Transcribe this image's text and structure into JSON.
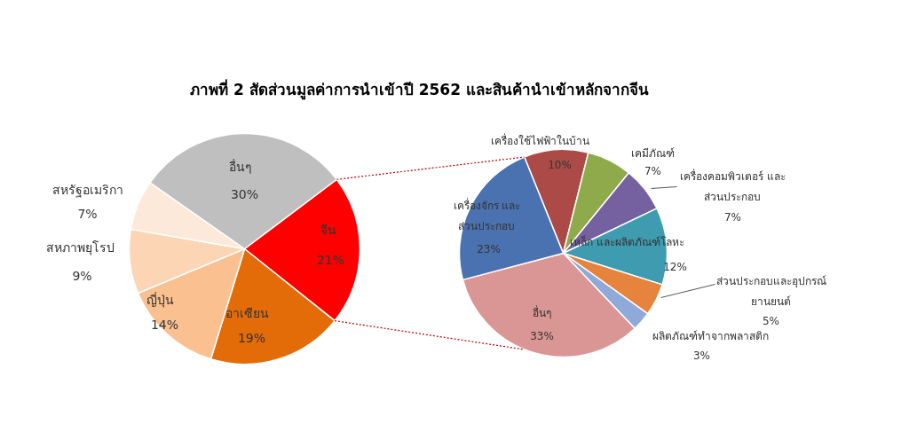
{
  "chart_data": [
    {
      "type": "pie",
      "title": "ภาพที่ 2 สัดส่วนมูลค่าการนำเข้าปี 2562 และสินค้านำเข้าหลักจากจีน",
      "categories": [
        "จีน",
        "อาเซียน",
        "ญี่ปุ่น",
        "สหภาพยุโรป",
        "สหรัฐอเมริกา",
        "อื่นๆ"
      ],
      "values": [
        21,
        19,
        14,
        9,
        7,
        30
      ],
      "value_labels": [
        "21%",
        "19%",
        "14%",
        "9%",
        "7%",
        "30%"
      ],
      "colors": [
        "#ff0000",
        "#e36c09",
        "#fac090",
        "#fcd5b5",
        "#fde9d9",
        "#bfbfbf"
      ]
    },
    {
      "type": "pie",
      "categories": [
        "เครื่องใช้ไฟฟ้าในบ้าน",
        "เคมีภัณฑ์",
        "เครื่องคอมพิวเตอร์ และ\nส่วนประกอบ",
        "เหล็ก และผลิตภัณฑ์โลหะ",
        "ส่วนประกอบและอุปกรณ์\nยานยนต์",
        "ผลิตภัณฑ์ทำจากพลาสติก",
        "อื่นๆ",
        "เครื่องจักร และ\nส่วนประกอบ"
      ],
      "values": [
        10,
        7,
        7,
        12,
        5,
        3,
        33,
        23
      ],
      "value_labels": [
        "10%",
        "7%",
        "7%",
        "12%",
        "5%",
        "3%",
        "33%",
        "23%"
      ],
      "colors": [
        "#ac4a47",
        "#8eaa4b",
        "#7560a0",
        "#3e9bb0",
        "#e6833d",
        "#8fa9d8",
        "#d99694",
        "#4a72b0"
      ]
    }
  ]
}
